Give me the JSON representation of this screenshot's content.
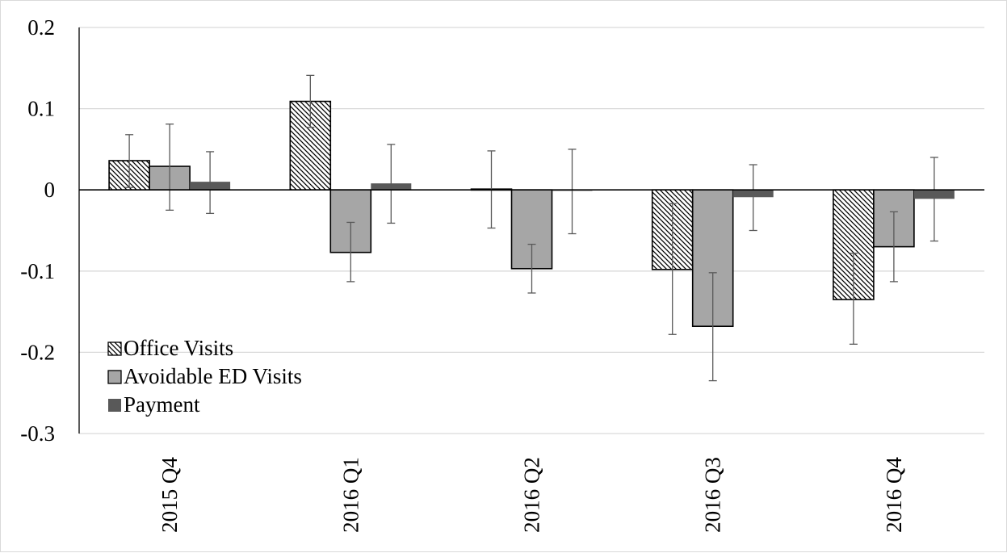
{
  "chart_data": {
    "type": "bar",
    "title": "",
    "xlabel": "",
    "ylabel": "",
    "ylim": [
      -0.3,
      0.2
    ],
    "yticks": [
      0.2,
      0.1,
      0,
      -0.1,
      -0.2,
      -0.3
    ],
    "ytick_labels": [
      "0.2",
      "0.1",
      "0",
      "-0.1",
      "-0.2",
      "-0.3"
    ],
    "grid": true,
    "legend_position": "bottom-left",
    "categories": [
      "2015 Q4",
      "2016 Q1",
      "2016 Q2",
      "2016 Q3",
      "2016 Q4"
    ],
    "series": [
      {
        "name": "Office Visits",
        "fill": "hatched",
        "color": "#ffffff",
        "values": [
          0.036,
          0.109,
          0.001,
          -0.098,
          -0.135
        ],
        "ci_low": [
          0.003,
          0.077,
          -0.047,
          -0.178,
          -0.19
        ],
        "ci_high": [
          0.068,
          0.141,
          0.048,
          -0.017,
          -0.078
        ]
      },
      {
        "name": "Avoidable ED Visits",
        "fill": "solid",
        "color": "#a6a6a6",
        "values": [
          0.029,
          -0.077,
          -0.097,
          -0.168,
          -0.07
        ],
        "ci_low": [
          -0.025,
          -0.113,
          -0.127,
          -0.235,
          -0.113
        ],
        "ci_high": [
          0.081,
          -0.04,
          -0.067,
          -0.102,
          -0.027
        ]
      },
      {
        "name": "Payment",
        "fill": "solid",
        "color": "#595959",
        "values": [
          0.01,
          0.008,
          -0.001,
          -0.009,
          -0.011
        ],
        "ci_low": [
          -0.029,
          -0.041,
          -0.054,
          -0.05,
          -0.063
        ],
        "ci_high": [
          0.047,
          0.056,
          0.05,
          0.031,
          0.04
        ]
      }
    ]
  }
}
